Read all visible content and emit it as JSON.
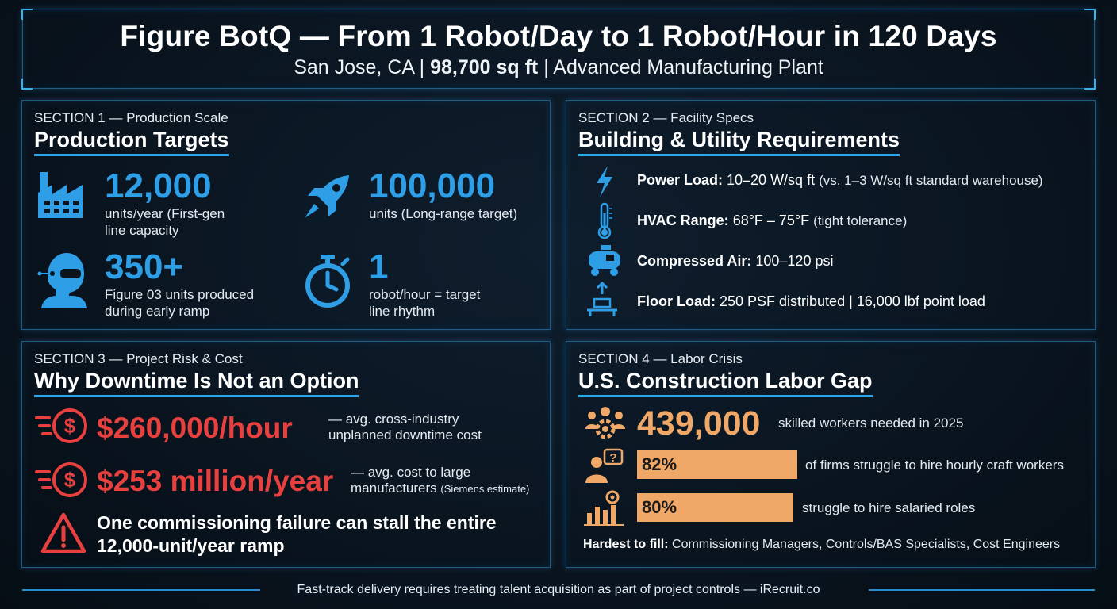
{
  "header": {
    "title": "Figure BotQ — From 1 Robot/Day to 1 Robot/Hour in 120 Days",
    "location": "San Jose, CA",
    "separator": "|",
    "area": "98,700 sq ft",
    "plant": "Advanced Manufacturing Plant"
  },
  "section1": {
    "label": "SECTION 1 — Production Scale",
    "title": "Production Targets",
    "stats": [
      {
        "value": "12,000",
        "desc_line1": "units/year (First-gen",
        "desc_line2": "line capacity",
        "icon": "factory-icon"
      },
      {
        "value": "100,000",
        "desc_line1": "units (Long-range target)",
        "desc_line2": "",
        "icon": "rocket-icon"
      },
      {
        "value": "350+",
        "desc_line1": "Figure 03 units produced",
        "desc_line2": "during early ramp",
        "icon": "robot-head-icon"
      },
      {
        "value": "1",
        "desc_line1": "robot/hour = target",
        "desc_line2": "line rhythm",
        "icon": "stopwatch-icon"
      }
    ]
  },
  "section2": {
    "label": "SECTION 2 — Facility Specs",
    "title": "Building & Utility Requirements",
    "items": [
      {
        "key": "Power Load:",
        "value": " 10–20 W/sq ft ",
        "note": "(vs. 1–3 W/sq ft standard warehouse)",
        "icon": "lightning-icon"
      },
      {
        "key": "HVAC Range:",
        "value": " 68°F – 75°F ",
        "note": "(tight tolerance)",
        "icon": "thermometer-icon"
      },
      {
        "key": "Compressed Air:",
        "value": " 100–120 psi",
        "note": "",
        "icon": "compressor-icon"
      },
      {
        "key": "Floor Load:",
        "value": " 250 PSF distributed | 16,000 lbf point load",
        "note": "",
        "icon": "floor-load-icon"
      }
    ]
  },
  "section3": {
    "label": "SECTION 3 — Project Risk & Cost",
    "title": "Why Downtime Is Not an Option",
    "costs": [
      {
        "value": "$260,000/hour",
        "desc_line1": "— avg. cross-industry",
        "desc_line2": "unplanned downtime cost",
        "desc_small": "",
        "icon": "money-loss-icon"
      },
      {
        "value": "$253 million/year",
        "desc_line1": "— avg. cost to large",
        "desc_line2": "manufacturers",
        "desc_small": "(Siemens estimate)",
        "icon": "money-loss-icon"
      }
    ],
    "warning_line1": "One commissioning failure can stall the entire",
    "warning_line2": "12,000-unit/year ramp",
    "colors": {
      "accent": "#e8403f"
    }
  },
  "section4": {
    "label": "SECTION 4 — Labor Crisis",
    "title": "U.S. Construction Labor Gap",
    "headline_value": "439,000",
    "headline_desc": "skilled workers needed in 2025",
    "bars": [
      {
        "value": "82%",
        "fraction": 0.82,
        "desc": "of firms struggle to hire hourly craft workers",
        "icon": "worker-question-icon"
      },
      {
        "value": "80%",
        "fraction": 0.8,
        "desc": "struggle to hire salaried roles",
        "icon": "bar-chart-person-icon"
      }
    ],
    "hardest_label": "Hardest to fill:",
    "hardest_text": " Commissioning Managers, Controls/BAS Specialists, Cost Engineers",
    "colors": {
      "accent": "#f0a868"
    }
  },
  "footer": {
    "text": "Fast-track delivery requires treating talent acquisition as part of project controls — iRecruit.co"
  },
  "colors": {
    "background": "#0a1520",
    "blue": "#2e9fe6",
    "border": "#1d5c85"
  }
}
